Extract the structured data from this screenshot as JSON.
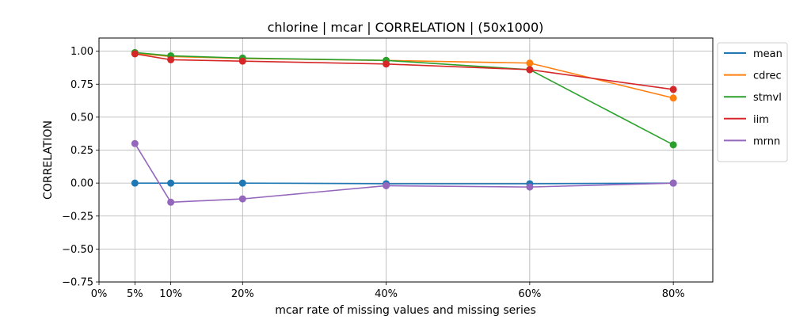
{
  "chart_data": {
    "type": "line",
    "title": "chlorine | mcar | CORRELATION | (50x1000)",
    "xlabel": "mcar rate of missing values and missing series",
    "ylabel": "CORRELATION",
    "x": [
      5,
      10,
      20,
      40,
      60,
      80
    ],
    "xticks": [
      0,
      5,
      10,
      20,
      40,
      60,
      80
    ],
    "xtick_labels": [
      "0%",
      "5%",
      "10%",
      "20%",
      "40%",
      "60%",
      "80%"
    ],
    "xlim": [
      0,
      85.5
    ],
    "ylim": [
      -0.75,
      1.1
    ],
    "yticks": [
      -0.75,
      -0.5,
      -0.25,
      0.0,
      0.25,
      0.5,
      0.75,
      1.0
    ],
    "ytick_labels": [
      "−0.75",
      "−0.50",
      "−0.25",
      "0.00",
      "0.25",
      "0.50",
      "0.75",
      "1.00"
    ],
    "grid": true,
    "legend_position": "outside-right-top",
    "series": [
      {
        "name": "mean",
        "color": "#1f77b4",
        "values": [
          0.0,
          0.0,
          0.0,
          -0.005,
          -0.005,
          0.0
        ]
      },
      {
        "name": "cdrec",
        "color": "#ff7f0e",
        "values": [
          0.985,
          0.96,
          0.945,
          0.93,
          0.91,
          0.645
        ]
      },
      {
        "name": "stmvl",
        "color": "#2ca02c",
        "values": [
          0.99,
          0.965,
          0.948,
          0.93,
          0.86,
          0.29
        ]
      },
      {
        "name": "iim",
        "color": "#d62728",
        "values": [
          0.98,
          0.935,
          0.925,
          0.903,
          0.86,
          0.71
        ]
      },
      {
        "name": "mrnn",
        "color": "#9467bd",
        "values": [
          0.3,
          -0.145,
          -0.12,
          -0.02,
          -0.03,
          0.0
        ]
      }
    ]
  }
}
